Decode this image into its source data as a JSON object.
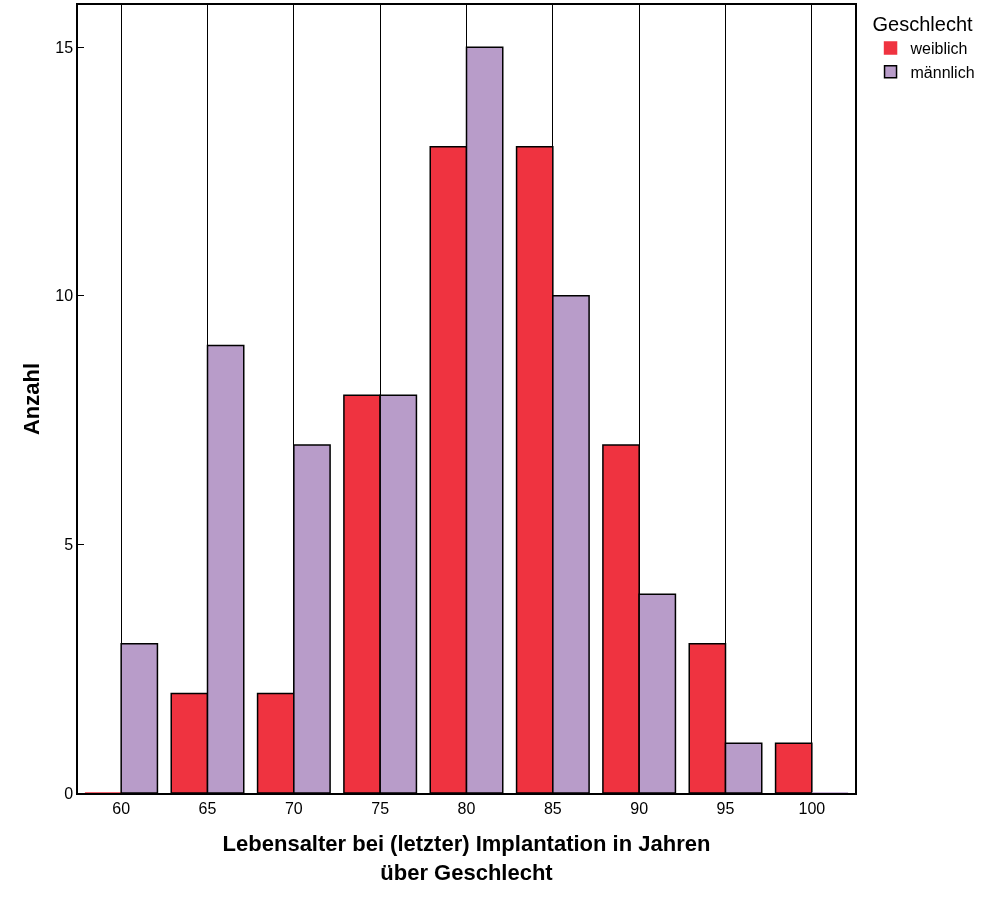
{
  "chart_data": {
    "type": "bar",
    "xlabel": "Lebensalter bei (letzter) Implantation in Jahren\nüber Geschlecht",
    "ylabel": "Anzahl",
    "legend_title": "Geschlecht",
    "categories": [
      "60",
      "65",
      "70",
      "75",
      "80",
      "85",
      "90",
      "95",
      "100"
    ],
    "series": [
      {
        "name": "weiblich",
        "color": "#ef3340",
        "values": [
          0,
          2,
          2,
          8,
          13,
          13,
          7,
          3,
          1
        ]
      },
      {
        "name": "männlich",
        "color": "#b89cc9",
        "values": [
          3,
          9,
          7,
          8,
          15,
          10,
          4,
          1,
          0
        ]
      }
    ],
    "ylim": [
      0,
      15.85
    ],
    "yticks": [
      0,
      5,
      10,
      15
    ],
    "grid": "x",
    "legend": "top right"
  }
}
